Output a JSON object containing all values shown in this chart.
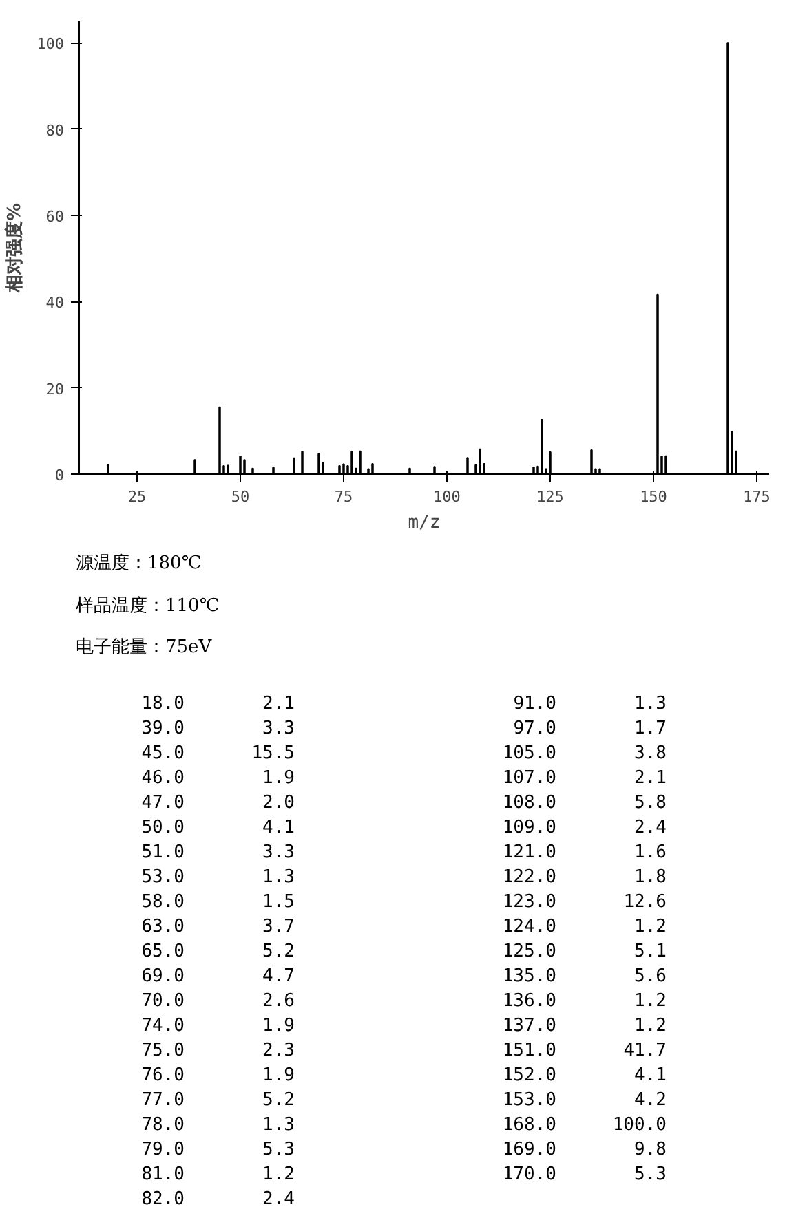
{
  "chart_data": {
    "type": "bar",
    "xlabel": "m/z",
    "ylabel": "相对强度%",
    "x": [
      18.0,
      39.0,
      45.0,
      46.0,
      47.0,
      50.0,
      51.0,
      53.0,
      58.0,
      63.0,
      65.0,
      69.0,
      70.0,
      74.0,
      75.0,
      76.0,
      77.0,
      78.0,
      79.0,
      81.0,
      82.0,
      91.0,
      97.0,
      105.0,
      107.0,
      108.0,
      109.0,
      121.0,
      122.0,
      123.0,
      124.0,
      125.0,
      135.0,
      136.0,
      137.0,
      151.0,
      152.0,
      153.0,
      168.0,
      169.0,
      170.0
    ],
    "values": [
      2.1,
      3.3,
      15.5,
      1.9,
      2.0,
      4.1,
      3.3,
      1.3,
      1.5,
      3.7,
      5.2,
      4.7,
      2.6,
      1.9,
      2.3,
      1.9,
      5.2,
      1.3,
      5.3,
      1.2,
      2.4,
      1.3,
      1.7,
      3.8,
      2.1,
      5.8,
      2.4,
      1.6,
      1.8,
      12.6,
      1.2,
      5.1,
      5.6,
      1.2,
      1.2,
      41.7,
      4.1,
      4.2,
      100.0,
      9.8,
      5.3
    ],
    "color": "#000000",
    "xlim": [
      11,
      178
    ],
    "xticks": [
      25,
      50,
      75,
      100,
      125,
      150,
      175
    ],
    "ylim": [
      0,
      105
    ],
    "yticks": [
      0,
      20,
      40,
      60,
      80,
      100
    ],
    "grid": false,
    "annotations": [
      "源温度：180℃",
      "样品温度：110℃",
      "电子能量：75eV",
      "18.0",
      "2.1",
      "39.0",
      "3.3",
      "45.0",
      "15.5",
      "46.0",
      "1.9",
      "47.0",
      "2.0",
      "50.0",
      "4.1",
      "51.0",
      "3.3",
      "53.0",
      "1.3",
      "58.0",
      "1.5",
      "63.0",
      "3.7",
      "65.0",
      "5.2",
      "69.0",
      "4.7",
      "70.0",
      "2.6",
      "74.0",
      "1.9",
      "75.0",
      "2.3",
      "76.0",
      "1.9",
      "77.0",
      "5.2",
      "78.0",
      "1.3",
      "79.0",
      "5.3",
      "81.0",
      "1.2",
      "82.0",
      "2.4",
      "91.0",
      "1.3",
      "97.0",
      "1.7",
      "105.0",
      "3.8",
      "107.0",
      "2.1",
      "108.0",
      "5.8",
      "109.0",
      "2.4",
      "121.0",
      "1.6",
      "122.0",
      "1.8",
      "123.0",
      "12.6",
      "124.0",
      "1.2",
      "125.0",
      "5.1",
      "135.0",
      "5.6",
      "136.0",
      "1.2",
      "137.0",
      "1.2",
      "151.0",
      "41.7",
      "152.0",
      "4.1",
      "153.0",
      "4.2",
      "168.0",
      "100.0",
      "169.0",
      "9.8",
      "170.0",
      "5.3"
    ]
  }
}
